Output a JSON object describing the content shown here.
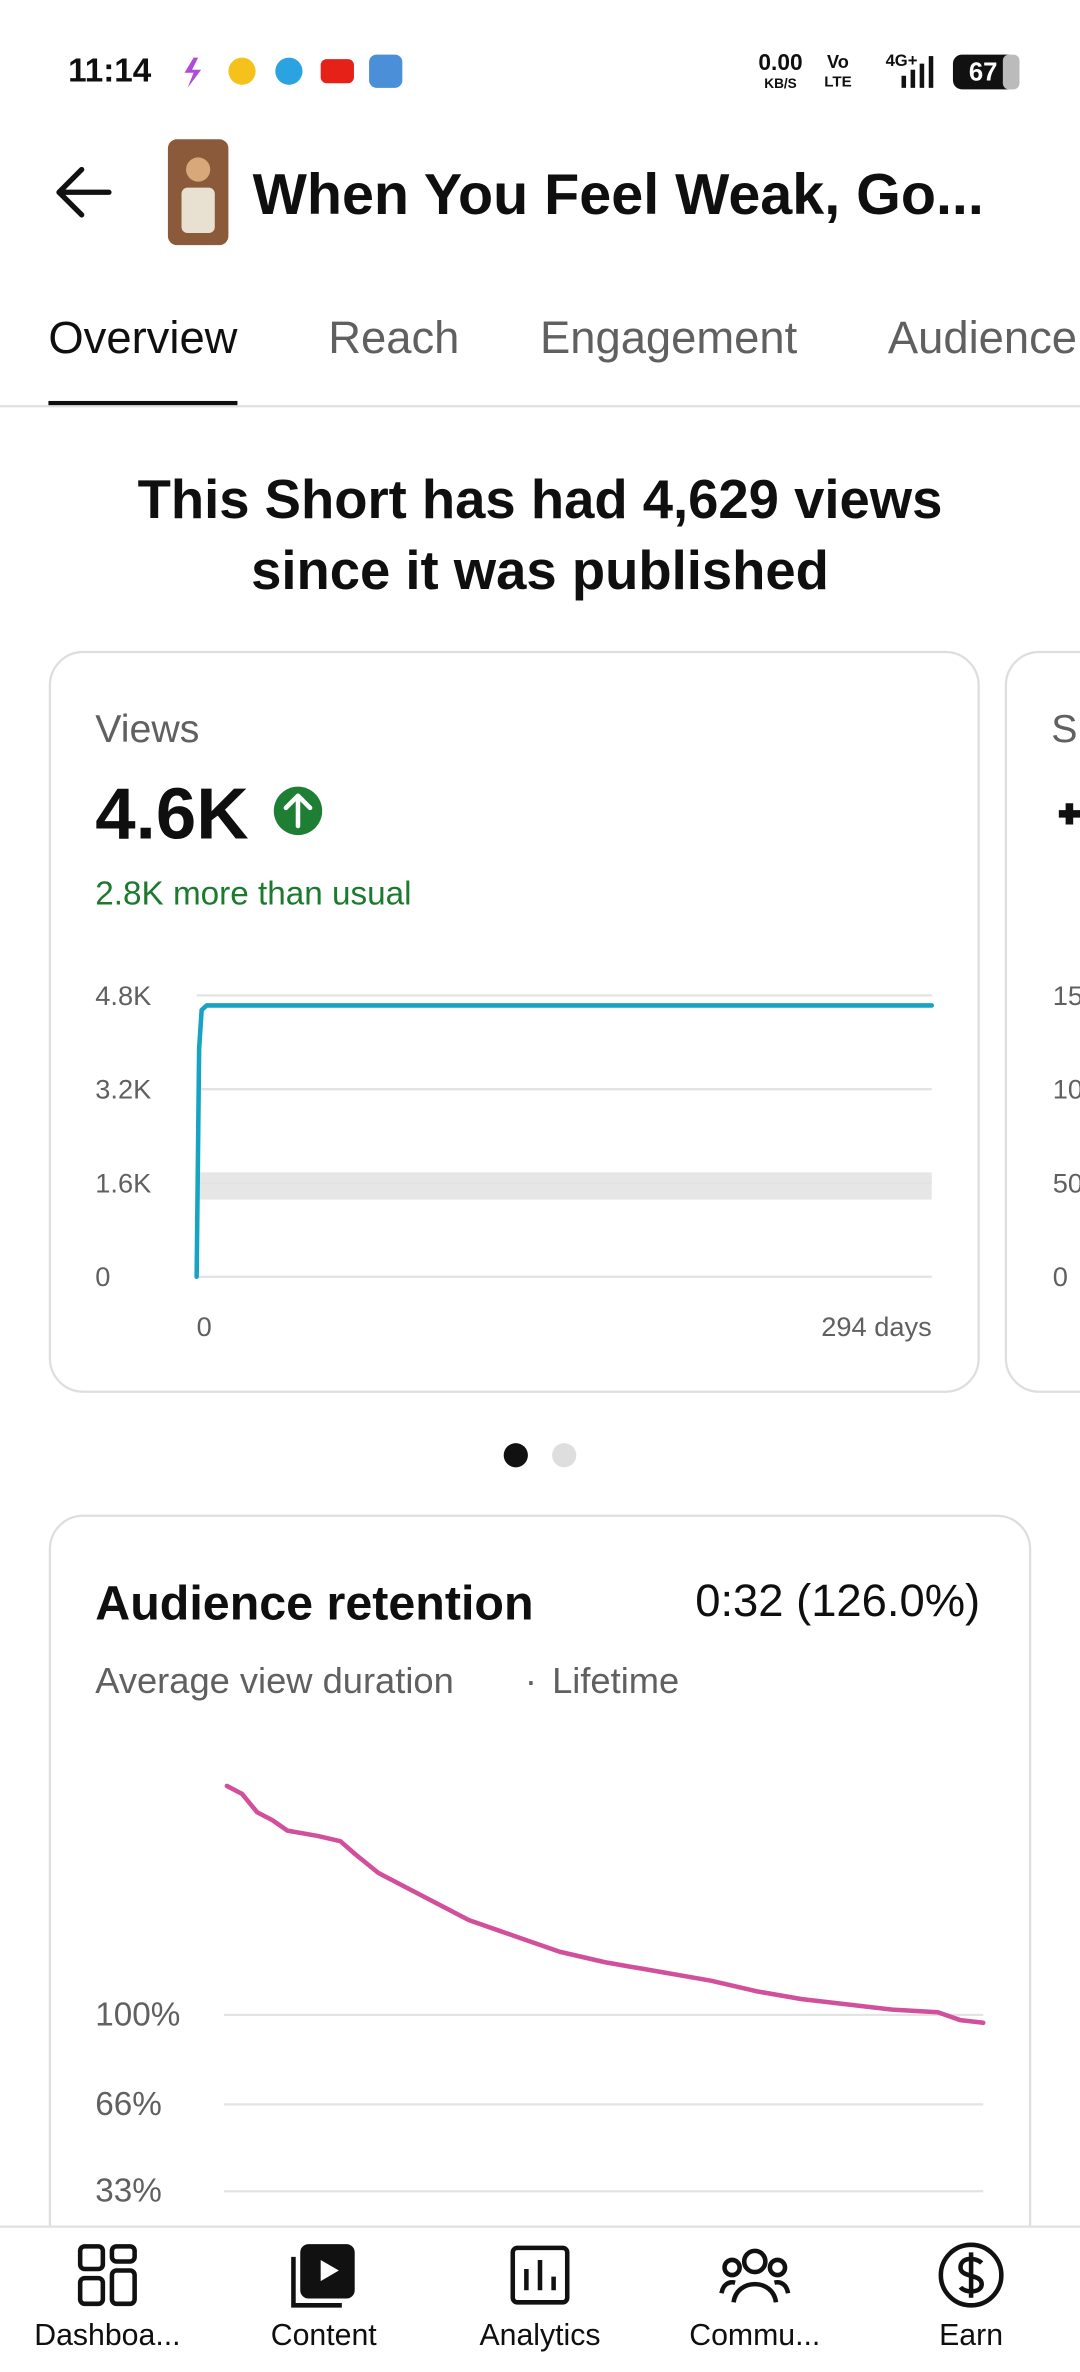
{
  "status_bar": {
    "time": "11:14",
    "net_speed": "0.00",
    "net_unit": "KB/S",
    "volte_top": "Vo",
    "volte_bottom": "LTE",
    "network": "4G+",
    "battery": "67"
  },
  "header": {
    "title": "When You Feel Weak, Go..."
  },
  "tabs": {
    "items": [
      "Overview",
      "Reach",
      "Engagement",
      "Audience"
    ],
    "selected": 0
  },
  "summary": {
    "line1": "This Short has had 4,629 views",
    "line2": "since it was published"
  },
  "views_card": {
    "label": "Views",
    "value": "4.6K",
    "comparison": "2.8K more than usual",
    "chart_data": {
      "type": "line",
      "x": [
        0,
        1,
        2,
        4,
        294
      ],
      "values": [
        0,
        3900,
        4550,
        4629,
        4629
      ],
      "color": "#16a3c4",
      "xlim": [
        0,
        294
      ],
      "xticks": [
        0,
        {
          "value": 294,
          "label": "294 days"
        }
      ],
      "ylim": [
        0,
        4800
      ],
      "yticks": [
        0,
        {
          "value": 1600,
          "label": "1.6K"
        },
        {
          "value": 3200,
          "label": "3.2K"
        },
        {
          "value": 4800,
          "label": "4.8K"
        }
      ],
      "typical_range": [
        1316,
        1781
      ],
      "grid": true
    }
  },
  "peek_card": {
    "label": "S",
    "ticks": [
      "15",
      "10",
      "50",
      "0"
    ]
  },
  "pagination": {
    "count": 2,
    "active": 0
  },
  "retention_card": {
    "title": "Audience retention",
    "value": "0:32 (126.0%)",
    "subtitle": "Average view duration",
    "separator": "·",
    "period": "Lifetime",
    "chart_data": {
      "type": "line",
      "x": [
        0,
        2,
        4,
        6,
        8,
        12,
        15,
        17,
        20,
        24,
        28,
        32,
        36,
        40,
        44,
        50,
        56,
        64,
        70,
        76,
        82,
        88,
        94,
        97,
        100
      ],
      "values": [
        187,
        184,
        177,
        174,
        170,
        168,
        166,
        161,
        154,
        148,
        142,
        136,
        132,
        128,
        124,
        120,
        117,
        113,
        109,
        106,
        104,
        102,
        101,
        98,
        97
      ],
      "color": "#d14f9b",
      "xlim": [
        0,
        100
      ],
      "ylim": [
        0,
        200
      ],
      "yticks": [
        {
          "value": 100,
          "label": "100%"
        },
        {
          "value": 66,
          "label": "66%"
        },
        {
          "value": 33,
          "label": "33%"
        }
      ],
      "grid": true
    }
  },
  "bottom_nav": [
    "Dashboa...",
    "Content",
    "Analytics",
    "Commu...",
    "Earn"
  ]
}
